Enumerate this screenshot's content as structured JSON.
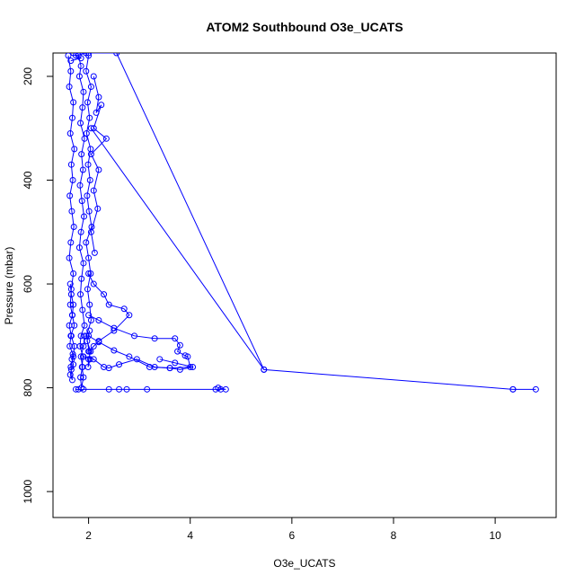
{
  "chart_data": {
    "type": "line",
    "title": "ATOM2 Southbound O3e_UCATS",
    "xlabel": "O3e_UCATS",
    "ylabel": "Pressure (mbar)",
    "xlim": [
      1.3,
      11.2
    ],
    "ylim": [
      1050,
      155
    ],
    "y_reversed": true,
    "x_ticks": [
      2,
      4,
      6,
      8,
      10
    ],
    "y_ticks": [
      200,
      400,
      600,
      800,
      1000
    ],
    "grid": false,
    "legend": "none",
    "series_color": "#0000ff",
    "marker": "open-circle",
    "series": [
      {
        "x": [
          1.6,
          1.65,
          1.62,
          1.7,
          1.68,
          1.64,
          1.72,
          1.66,
          1.69,
          1.63,
          1.67,
          1.71,
          1.65,
          1.62,
          1.7,
          1.66,
          1.64,
          1.68,
          1.72,
          1.65,
          1.63,
          1.69,
          1.67,
          1.7,
          1.66,
          1.64,
          1.68,
          1.65,
          1.7,
          1.72,
          1.66,
          1.62,
          1.68,
          1.7,
          1.66,
          1.64
        ],
        "y": [
          160,
          190,
          220,
          250,
          280,
          310,
          340,
          370,
          400,
          430,
          460,
          490,
          520,
          550,
          580,
          610,
          640,
          660,
          680,
          700,
          720,
          735,
          745,
          755,
          765,
          775,
          785,
          760,
          740,
          720,
          700,
          680,
          660,
          640,
          620,
          600
        ]
      },
      {
        "x": [
          1.8,
          1.85,
          1.82,
          1.9,
          1.88,
          1.84,
          1.92,
          1.86,
          1.89,
          1.83,
          1.87,
          1.91,
          1.85,
          1.82,
          1.9,
          1.86,
          1.84,
          1.88,
          1.92,
          1.85,
          1.83,
          1.89,
          1.87,
          1.9,
          1.86,
          1.84,
          1.88,
          1.85,
          1.9,
          1.92
        ],
        "y": [
          160,
          180,
          200,
          230,
          260,
          290,
          320,
          350,
          380,
          410,
          440,
          470,
          500,
          530,
          560,
          590,
          620,
          650,
          680,
          700,
          720,
          740,
          760,
          780,
          800,
          780,
          760,
          740,
          720,
          700
        ]
      },
      {
        "x": [
          2.0,
          1.95,
          2.05,
          1.98,
          2.02,
          1.96,
          2.04,
          1.99,
          2.03,
          1.97,
          2.01,
          2.06,
          1.95,
          2.0,
          2.04,
          1.98,
          2.02,
          2.05,
          1.96,
          2.01,
          2.03,
          1.99,
          2.0,
          2.04,
          1.97,
          2.02
        ],
        "y": [
          160,
          190,
          220,
          250,
          280,
          310,
          340,
          370,
          400,
          430,
          460,
          490,
          520,
          550,
          580,
          610,
          640,
          670,
          700,
          730,
          745,
          760,
          745,
          730,
          710,
          690
        ]
      },
      {
        "x": [
          2.1,
          2.2,
          2.15,
          2.25,
          2.1,
          2.35,
          2.05,
          2.2,
          2.1,
          2.18,
          2.05,
          2.12
        ],
        "y": [
          200,
          240,
          270,
          255,
          300,
          320,
          350,
          380,
          420,
          455,
          500,
          540
        ]
      },
      {
        "x": [
          2.0,
          2.1,
          2.3,
          2.4,
          2.7,
          2.8,
          2.5,
          2.2,
          2.1,
          2.0
        ],
        "y": [
          580,
          600,
          620,
          640,
          648,
          660,
          690,
          710,
          720,
          730
        ]
      },
      {
        "x": [
          2.0,
          2.2,
          2.5,
          2.9,
          3.3,
          3.7,
          3.8,
          3.75,
          3.9,
          3.95,
          4.0,
          3.6,
          3.2,
          2.8,
          2.5,
          2.2,
          2.0
        ],
        "y": [
          660,
          670,
          685,
          700,
          705,
          705,
          718,
          730,
          738,
          740,
          760,
          762,
          760,
          740,
          728,
          712,
          700
        ]
      },
      {
        "x": [
          1.9,
          2.1,
          2.3,
          2.4,
          2.6,
          2.95,
          3.3,
          3.6,
          3.8,
          4.05,
          3.7,
          3.4
        ],
        "y": [
          740,
          745,
          760,
          762,
          755,
          745,
          760,
          762,
          765,
          760,
          752,
          745
        ]
      },
      {
        "x": [
          1.75,
          1.8,
          1.9,
          2.4,
          2.6,
          2.75,
          3.15,
          4.5,
          4.6,
          4.7,
          4.55
        ],
        "y": [
          803,
          803,
          803,
          803,
          803,
          803,
          803,
          803,
          803,
          803,
          800
        ]
      },
      {
        "x": [
          2.05,
          5.45,
          10.35,
          10.8,
          10.35
        ],
        "y": [
          300,
          765,
          803,
          803,
          803
        ]
      },
      {
        "x": [
          2.0,
          2.55,
          5.45
        ],
        "y": [
          155,
          155,
          765
        ]
      },
      {
        "x": [
          1.7,
          1.95,
          1.75,
          1.85,
          1.65
        ],
        "y": [
          155,
          155,
          160,
          165,
          170
        ]
      }
    ]
  }
}
